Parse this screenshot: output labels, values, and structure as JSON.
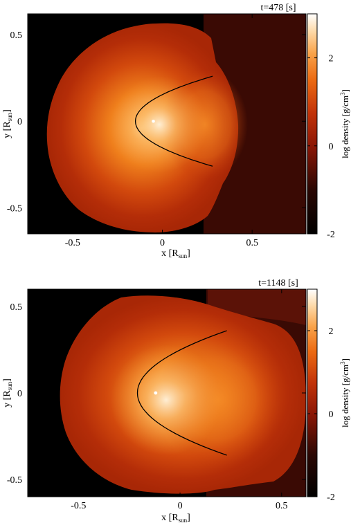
{
  "chart_data": [
    {
      "type": "heatmap",
      "time_label": "t=478 [s]",
      "xlabel": "x [R",
      "xlabel_sub": "sun",
      "xlabel_end": "]",
      "ylabel": "y [R",
      "ylabel_sub": "sun",
      "ylabel_end": "]",
      "xlim": [
        -0.75,
        0.8
      ],
      "ylim": [
        -0.65,
        0.62
      ],
      "xticks": [
        -0.5,
        0,
        0.5
      ],
      "xtick_labels": [
        "-0.5",
        "0",
        "0.5"
      ],
      "yticks": [
        0.5,
        0,
        -0.5
      ],
      "ytick_labels": [
        "0.5",
        "0",
        "-0.5"
      ],
      "colorbar": {
        "label": "log density [g/cm",
        "label_sup": "3",
        "label_end": "]",
        "range": [
          -2,
          3
        ],
        "ticks": [
          2,
          0,
          -2
        ],
        "tick_labels": [
          "2",
          "0",
          "-2"
        ]
      },
      "stars": [
        {
          "x": -0.05,
          "y": 0.0
        }
      ],
      "cloud_center": [
        -0.05,
        0.0
      ],
      "curve": {
        "vertex": [
          -0.15,
          0.0
        ],
        "end_x": 0.28,
        "half_height": 0.26
      }
    },
    {
      "type": "heatmap",
      "time_label": "t=1148 [s]",
      "xlabel": "x [R",
      "xlabel_sub": "sun",
      "xlabel_end": "]",
      "ylabel": "y [R",
      "ylabel_sub": "sun",
      "ylabel_end": "]",
      "xlim": [
        -0.75,
        0.62
      ],
      "ylim": [
        -0.6,
        0.6
      ],
      "xticks": [
        -0.5,
        0,
        0.5
      ],
      "xtick_labels": [
        "-0.5",
        "0",
        "0.5"
      ],
      "yticks": [
        0.5,
        0,
        -0.5
      ],
      "ytick_labels": [
        "0.5",
        "0",
        "-0.5"
      ],
      "colorbar": {
        "label": "log density [g/cm",
        "label_sup": "3",
        "label_end": "]",
        "range": [
          -2,
          3
        ],
        "ticks": [
          2,
          0,
          -2
        ],
        "tick_labels": [
          "2",
          "0",
          "-2"
        ]
      },
      "stars": [
        {
          "x": -0.12,
          "y": 0.0
        }
      ],
      "cloud_center": [
        -0.1,
        0.0
      ],
      "curve": {
        "vertex": [
          -0.21,
          0.0
        ],
        "end_x": 0.23,
        "half_height": 0.36
      }
    }
  ]
}
